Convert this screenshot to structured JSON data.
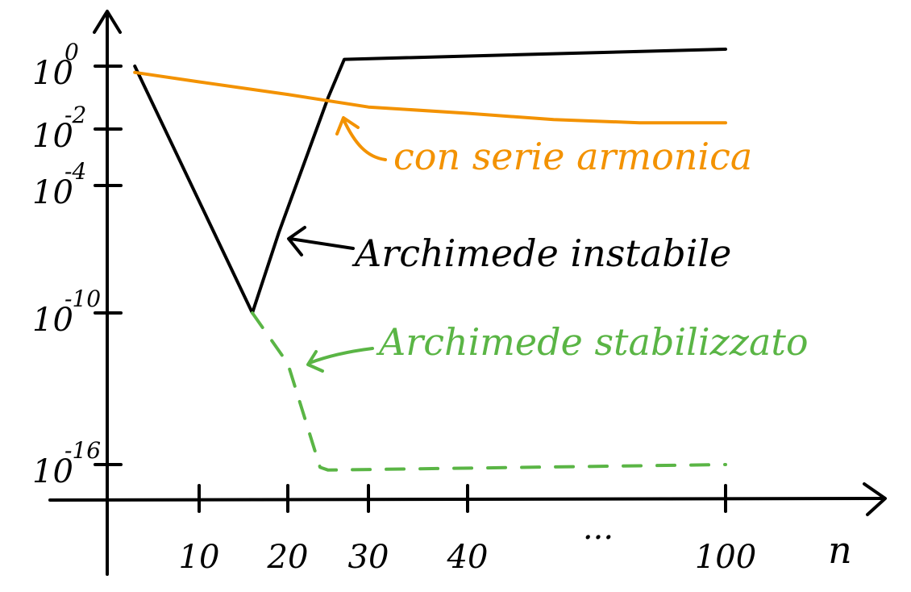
{
  "chart_data": {
    "type": "line",
    "title": "",
    "xlabel": "n",
    "ylabel": "",
    "yscale": "log",
    "xlim": [
      0,
      110
    ],
    "ylim": [
      1e-17,
      10
    ],
    "x_ticks": [
      {
        "value": 10,
        "label": "10"
      },
      {
        "value": 20,
        "label": "20"
      },
      {
        "value": 30,
        "label": "30"
      },
      {
        "value": 40,
        "label": "40"
      },
      {
        "value": 100,
        "label": "100"
      }
    ],
    "x_ellipsis": "...",
    "y_ticks": [
      {
        "value": 0,
        "base": "10",
        "exp": "0"
      },
      {
        "value": -2,
        "base": "10",
        "exp": "-2"
      },
      {
        "value": -4,
        "base": "10",
        "exp": "-4"
      },
      {
        "value": -10,
        "base": "10",
        "exp": "-10"
      },
      {
        "value": -16,
        "base": "10",
        "exp": "-16"
      }
    ],
    "grid": false,
    "legend": "none",
    "series": [
      {
        "name": "Archimede instabile",
        "color": "#000000",
        "style": "solid",
        "points": [
          [
            3,
            0
          ],
          [
            16,
            -10
          ],
          [
            19,
            -6.2
          ],
          [
            25,
            -1
          ],
          [
            27,
            0.2
          ],
          [
            100,
            0.5
          ]
        ]
      },
      {
        "name": "con serie armonica",
        "color": "#f39200",
        "style": "solid",
        "points": [
          [
            3,
            -0.2
          ],
          [
            10,
            -0.5
          ],
          [
            20,
            -0.9
          ],
          [
            30,
            -1.3
          ],
          [
            40,
            -1.5
          ],
          [
            60,
            -1.7
          ],
          [
            80,
            -1.8
          ],
          [
            100,
            -1.8
          ]
        ]
      },
      {
        "name": "Archimede stabilizzato",
        "color": "#5ab545",
        "style": "dashed",
        "points": [
          [
            16,
            -10
          ],
          [
            20,
            -12
          ],
          [
            24,
            -16.1
          ],
          [
            25,
            -16.2
          ],
          [
            100,
            -16
          ]
        ]
      }
    ],
    "annotations": [
      {
        "text": "con serie armonica",
        "series": 1,
        "color": "#f39200"
      },
      {
        "text": "Archimede instabile",
        "series": 0,
        "color": "#000000"
      },
      {
        "text": "Archimede stabilizzato",
        "series": 2,
        "color": "#5ab545"
      }
    ]
  }
}
